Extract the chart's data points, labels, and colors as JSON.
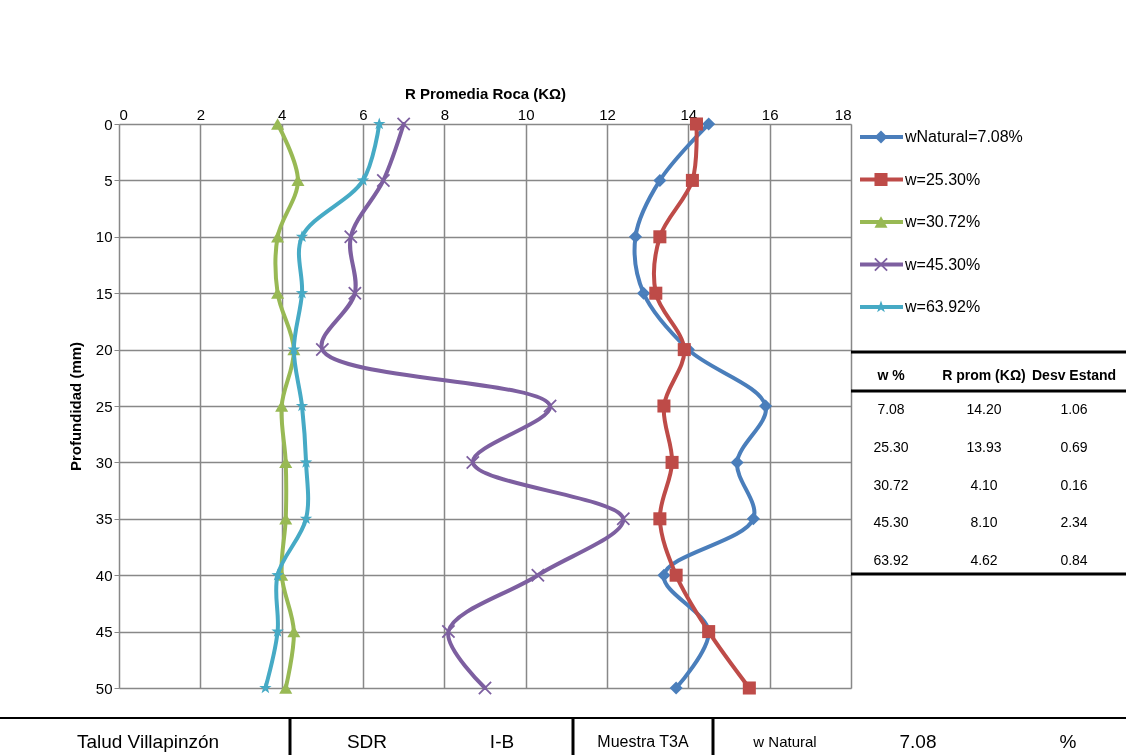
{
  "chart_data": {
    "type": "line",
    "orientation": "horizontal",
    "xlabel": "R Promedia Roca (KΩ)",
    "ylabel": "Profundidad (mm)",
    "x": [
      0,
      5,
      10,
      15,
      20,
      25,
      30,
      35,
      40,
      45,
      50
    ],
    "series": [
      {
        "name": "wNatural=7.08%",
        "color": "#4a7ebb",
        "marker": "diamond",
        "values": [
          14.5,
          13.3,
          12.7,
          12.9,
          14.0,
          15.9,
          15.2,
          15.6,
          13.4,
          14.5,
          13.7
        ]
      },
      {
        "name": "w=25.30%",
        "color": "#be4b48",
        "marker": "square",
        "values": [
          14.2,
          14.1,
          13.3,
          13.2,
          13.9,
          13.4,
          13.6,
          13.3,
          13.7,
          14.5,
          15.5
        ]
      },
      {
        "name": "w=30.72%",
        "color": "#98b954",
        "marker": "triangle",
        "values": [
          3.9,
          4.4,
          3.9,
          3.9,
          4.3,
          4.0,
          4.1,
          4.1,
          4.0,
          4.3,
          4.1
        ]
      },
      {
        "name": "w=45.30%",
        "color": "#7d5fa0",
        "marker": "cross",
        "values": [
          7.0,
          6.5,
          5.7,
          5.8,
          5.0,
          10.6,
          8.7,
          12.4,
          10.3,
          8.1,
          9.0
        ]
      },
      {
        "name": "w=63.92%",
        "color": "#46aac5",
        "marker": "star",
        "values": [
          6.4,
          6.0,
          4.5,
          4.5,
          4.3,
          4.5,
          4.6,
          4.6,
          3.9,
          3.9,
          3.6
        ]
      }
    ],
    "xlim": [
      0,
      18
    ],
    "xticks": [
      0,
      2,
      4,
      6,
      8,
      10,
      12,
      14,
      16,
      18
    ],
    "ylim": [
      50,
      0
    ],
    "yticks": [
      0,
      5,
      10,
      15,
      20,
      25,
      30,
      35,
      40,
      45,
      50
    ],
    "grid": true,
    "legend": "right",
    "line_style": "solid",
    "annotations": [
      "w %",
      "R prom (KΩ)",
      "Desv Estand",
      "7.08",
      "14.20",
      "1.06",
      "25.30",
      "13.93",
      "0.69",
      "30.72",
      "4.10",
      "0.16",
      "45.30",
      "8.10",
      "2.34",
      "63.92",
      "4.62",
      "0.84",
      "Talud Villapinzón",
      "SDR",
      "I-B",
      "Muestra T3A",
      "w Natural",
      "7.08",
      "%"
    ]
  }
}
